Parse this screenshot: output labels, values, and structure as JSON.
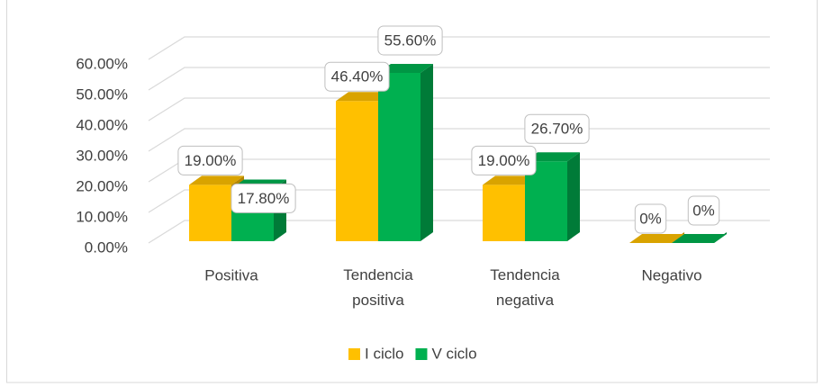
{
  "chart_data": {
    "type": "bar3d",
    "categories": [
      "Positiva",
      "Tendencia positiva",
      "Tendencia negativa",
      "Negativo"
    ],
    "series": [
      {
        "name": "I ciclo",
        "color": "#FFC000",
        "values": [
          19.0,
          46.4,
          19.0,
          0
        ],
        "value_labels": [
          "19.00%",
          "46.40%",
          "19.00%",
          "0%"
        ]
      },
      {
        "name": "V ciclo",
        "color": "#00B050",
        "values": [
          17.8,
          55.6,
          26.7,
          0
        ],
        "value_labels": [
          "17.80%",
          "55.60%",
          "26.70%",
          "0%"
        ]
      }
    ],
    "ylim": [
      0,
      60
    ],
    "yticks": [
      {
        "value": 0,
        "label": "0.00%"
      },
      {
        "value": 10,
        "label": "10.00%"
      },
      {
        "value": 20,
        "label": "20.00%"
      },
      {
        "value": 30,
        "label": "30.00%"
      },
      {
        "value": 40,
        "label": "40.00%"
      },
      {
        "value": 50,
        "label": "50.00%"
      },
      {
        "value": 60,
        "label": "60.00%"
      }
    ],
    "grid": true,
    "legend": "bottom"
  }
}
